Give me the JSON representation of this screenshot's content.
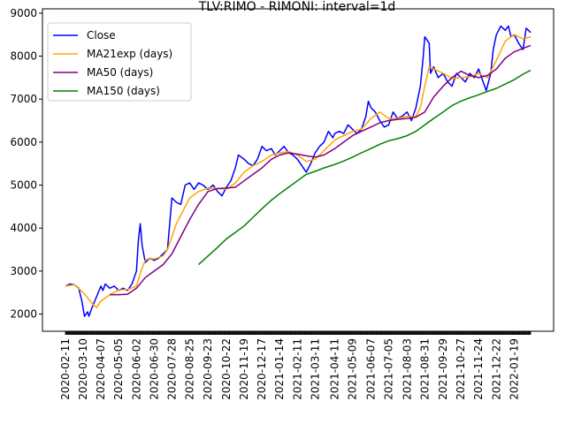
{
  "chart_data": {
    "type": "line",
    "title": "TLV:RIMO - RIMONI: interval=1d",
    "xlabel": "",
    "ylabel": "",
    "ylim": [
      1600,
      9100
    ],
    "y_ticks": [
      2000,
      3000,
      4000,
      5000,
      6000,
      7000,
      8000,
      9000
    ],
    "x_start": "2020-02-11",
    "x_end": "2022-02-14",
    "x_ticks": [
      "2020-02-11",
      "2020-03-10",
      "2020-04-07",
      "2020-05-05",
      "2020-06-02",
      "2020-06-30",
      "2020-07-28",
      "2020-08-25",
      "2020-09-23",
      "2020-10-22",
      "2020-11-19",
      "2020-12-17",
      "2021-01-14",
      "2021-02-11",
      "2021-03-11",
      "2021-04-11",
      "2021-05-09",
      "2021-06-07",
      "2021-07-05",
      "2021-08-03",
      "2021-08-31",
      "2021-09-29",
      "2021-10-27",
      "2021-11-24",
      "2021-12-22",
      "2022-01-19"
    ],
    "legend": "upper-left",
    "grid": false,
    "series": [
      {
        "name": "Close",
        "color": "#0000ff",
        "points": [
          [
            "2020-02-11",
            2650
          ],
          [
            "2020-02-18",
            2700
          ],
          [
            "2020-02-25",
            2680
          ],
          [
            "2020-03-03",
            2600
          ],
          [
            "2020-03-08",
            2300
          ],
          [
            "2020-03-12",
            1950
          ],
          [
            "2020-03-17",
            2050
          ],
          [
            "2020-03-19",
            1950
          ],
          [
            "2020-03-24",
            2150
          ],
          [
            "2020-03-31",
            2400
          ],
          [
            "2020-04-07",
            2650
          ],
          [
            "2020-04-10",
            2550
          ],
          [
            "2020-04-14",
            2700
          ],
          [
            "2020-04-21",
            2600
          ],
          [
            "2020-04-28",
            2650
          ],
          [
            "2020-05-05",
            2550
          ],
          [
            "2020-05-12",
            2600
          ],
          [
            "2020-05-19",
            2550
          ],
          [
            "2020-05-26",
            2700
          ],
          [
            "2020-06-02",
            3000
          ],
          [
            "2020-06-05",
            3700
          ],
          [
            "2020-06-08",
            4100
          ],
          [
            "2020-06-11",
            3600
          ],
          [
            "2020-06-16",
            3200
          ],
          [
            "2020-06-23",
            3300
          ],
          [
            "2020-06-30",
            3250
          ],
          [
            "2020-07-07",
            3300
          ],
          [
            "2020-07-14",
            3400
          ],
          [
            "2020-07-21",
            3500
          ],
          [
            "2020-07-28",
            4700
          ],
          [
            "2020-08-04",
            4600
          ],
          [
            "2020-08-11",
            4550
          ],
          [
            "2020-08-18",
            5000
          ],
          [
            "2020-08-25",
            5050
          ],
          [
            "2020-09-01",
            4900
          ],
          [
            "2020-09-08",
            5050
          ],
          [
            "2020-09-15",
            5000
          ],
          [
            "2020-09-23",
            4900
          ],
          [
            "2020-10-01",
            5000
          ],
          [
            "2020-10-08",
            4850
          ],
          [
            "2020-10-15",
            4750
          ],
          [
            "2020-10-22",
            4950
          ],
          [
            "2020-10-29",
            5100
          ],
          [
            "2020-11-05",
            5400
          ],
          [
            "2020-11-10",
            5700
          ],
          [
            "2020-11-19",
            5600
          ],
          [
            "2020-11-26",
            5500
          ],
          [
            "2020-12-03",
            5450
          ],
          [
            "2020-12-10",
            5600
          ],
          [
            "2020-12-17",
            5900
          ],
          [
            "2020-12-24",
            5800
          ],
          [
            "2021-01-01",
            5850
          ],
          [
            "2021-01-07",
            5700
          ],
          [
            "2021-01-14",
            5800
          ],
          [
            "2021-01-21",
            5900
          ],
          [
            "2021-01-28",
            5750
          ],
          [
            "2021-02-04",
            5700
          ],
          [
            "2021-02-11",
            5600
          ],
          [
            "2021-02-18",
            5450
          ],
          [
            "2021-02-25",
            5300
          ],
          [
            "2021-03-04",
            5500
          ],
          [
            "2021-03-11",
            5750
          ],
          [
            "2021-03-18",
            5900
          ],
          [
            "2021-03-25",
            6000
          ],
          [
            "2021-04-01",
            6250
          ],
          [
            "2021-04-08",
            6100
          ],
          [
            "2021-04-11",
            6200
          ],
          [
            "2021-04-18",
            6250
          ],
          [
            "2021-04-25",
            6200
          ],
          [
            "2021-05-02",
            6400
          ],
          [
            "2021-05-09",
            6300
          ],
          [
            "2021-05-16",
            6200
          ],
          [
            "2021-05-23",
            6300
          ],
          [
            "2021-05-30",
            6600
          ],
          [
            "2021-06-03",
            6950
          ],
          [
            "2021-06-07",
            6800
          ],
          [
            "2021-06-14",
            6700
          ],
          [
            "2021-06-21",
            6500
          ],
          [
            "2021-06-28",
            6350
          ],
          [
            "2021-07-05",
            6400
          ],
          [
            "2021-07-12",
            6700
          ],
          [
            "2021-07-19",
            6550
          ],
          [
            "2021-07-26",
            6600
          ],
          [
            "2021-08-03",
            6700
          ],
          [
            "2021-08-10",
            6500
          ],
          [
            "2021-08-17",
            6800
          ],
          [
            "2021-08-24",
            7300
          ],
          [
            "2021-08-28",
            7900
          ],
          [
            "2021-08-31",
            8450
          ],
          [
            "2021-09-07",
            8300
          ],
          [
            "2021-09-09",
            7600
          ],
          [
            "2021-09-14",
            7750
          ],
          [
            "2021-09-21",
            7500
          ],
          [
            "2021-09-29",
            7600
          ],
          [
            "2021-10-06",
            7400
          ],
          [
            "2021-10-13",
            7300
          ],
          [
            "2021-10-20",
            7600
          ],
          [
            "2021-10-27",
            7500
          ],
          [
            "2021-11-03",
            7400
          ],
          [
            "2021-11-10",
            7600
          ],
          [
            "2021-11-17",
            7500
          ],
          [
            "2021-11-24",
            7700
          ],
          [
            "2021-12-01",
            7400
          ],
          [
            "2021-12-06",
            7200
          ],
          [
            "2021-12-13",
            7600
          ],
          [
            "2021-12-17",
            8150
          ],
          [
            "2021-12-22",
            8500
          ],
          [
            "2021-12-29",
            8700
          ],
          [
            "2022-01-05",
            8600
          ],
          [
            "2022-01-10",
            8700
          ],
          [
            "2022-01-14",
            8450
          ],
          [
            "2022-01-19",
            8500
          ],
          [
            "2022-01-26",
            8300
          ],
          [
            "2022-02-02",
            8150
          ],
          [
            "2022-02-07",
            8650
          ],
          [
            "2022-02-14",
            8550
          ]
        ]
      },
      {
        "name": "MA21exp (days)",
        "color": "#ffa500",
        "points": [
          [
            "2020-02-11",
            2650
          ],
          [
            "2020-02-25",
            2680
          ],
          [
            "2020-03-10",
            2500
          ],
          [
            "2020-03-24",
            2250
          ],
          [
            "2020-03-31",
            2150
          ],
          [
            "2020-04-07",
            2300
          ],
          [
            "2020-04-21",
            2450
          ],
          [
            "2020-05-05",
            2560
          ],
          [
            "2020-05-19",
            2570
          ],
          [
            "2020-06-02",
            2650
          ],
          [
            "2020-06-09",
            3000
          ],
          [
            "2020-06-16",
            3250
          ],
          [
            "2020-06-23",
            3300
          ],
          [
            "2020-06-30",
            3280
          ],
          [
            "2020-07-14",
            3350
          ],
          [
            "2020-07-21",
            3500
          ],
          [
            "2020-07-28",
            3800
          ],
          [
            "2020-08-04",
            4100
          ],
          [
            "2020-08-11",
            4300
          ],
          [
            "2020-08-18",
            4500
          ],
          [
            "2020-08-25",
            4700
          ],
          [
            "2020-09-08",
            4850
          ],
          [
            "2020-09-23",
            4930
          ],
          [
            "2020-10-08",
            4920
          ],
          [
            "2020-10-22",
            4900
          ],
          [
            "2020-11-05",
            5050
          ],
          [
            "2020-11-19",
            5300
          ],
          [
            "2020-12-03",
            5450
          ],
          [
            "2020-12-17",
            5550
          ],
          [
            "2021-01-01",
            5700
          ],
          [
            "2021-01-14",
            5750
          ],
          [
            "2021-01-28",
            5780
          ],
          [
            "2021-02-11",
            5700
          ],
          [
            "2021-02-25",
            5550
          ],
          [
            "2021-03-11",
            5600
          ],
          [
            "2021-03-25",
            5800
          ],
          [
            "2021-04-11",
            6050
          ],
          [
            "2021-04-25",
            6150
          ],
          [
            "2021-05-09",
            6250
          ],
          [
            "2021-05-23",
            6300
          ],
          [
            "2021-06-07",
            6550
          ],
          [
            "2021-06-21",
            6700
          ],
          [
            "2021-07-05",
            6550
          ],
          [
            "2021-07-19",
            6550
          ],
          [
            "2021-08-03",
            6600
          ],
          [
            "2021-08-17",
            6600
          ],
          [
            "2021-08-24",
            6800
          ],
          [
            "2021-08-31",
            7300
          ],
          [
            "2021-09-07",
            7750
          ],
          [
            "2021-09-14",
            7700
          ],
          [
            "2021-09-29",
            7600
          ],
          [
            "2021-10-13",
            7480
          ],
          [
            "2021-10-27",
            7500
          ],
          [
            "2021-11-10",
            7520
          ],
          [
            "2021-11-24",
            7600
          ],
          [
            "2021-12-08",
            7500
          ],
          [
            "2021-12-22",
            7900
          ],
          [
            "2022-01-05",
            8350
          ],
          [
            "2022-01-19",
            8500
          ],
          [
            "2022-02-02",
            8400
          ],
          [
            "2022-02-14",
            8450
          ]
        ]
      },
      {
        "name": "MA50 (days)",
        "color": "#800080",
        "points": [
          [
            "2020-04-21",
            2450
          ],
          [
            "2020-05-05",
            2450
          ],
          [
            "2020-05-19",
            2460
          ],
          [
            "2020-06-02",
            2600
          ],
          [
            "2020-06-16",
            2850
          ],
          [
            "2020-06-30",
            3000
          ],
          [
            "2020-07-14",
            3150
          ],
          [
            "2020-07-28",
            3400
          ],
          [
            "2020-08-11",
            3800
          ],
          [
            "2020-08-25",
            4200
          ],
          [
            "2020-09-08",
            4550
          ],
          [
            "2020-09-23",
            4850
          ],
          [
            "2020-10-08",
            4920
          ],
          [
            "2020-10-22",
            4930
          ],
          [
            "2020-11-05",
            4950
          ],
          [
            "2020-11-19",
            5100
          ],
          [
            "2020-12-03",
            5250
          ],
          [
            "2020-12-17",
            5400
          ],
          [
            "2021-01-01",
            5600
          ],
          [
            "2021-01-14",
            5700
          ],
          [
            "2021-01-28",
            5750
          ],
          [
            "2021-02-11",
            5720
          ],
          [
            "2021-02-25",
            5680
          ],
          [
            "2021-03-11",
            5650
          ],
          [
            "2021-03-25",
            5700
          ],
          [
            "2021-04-11",
            5850
          ],
          [
            "2021-04-25",
            6000
          ],
          [
            "2021-05-09",
            6150
          ],
          [
            "2021-05-23",
            6250
          ],
          [
            "2021-06-07",
            6350
          ],
          [
            "2021-06-21",
            6450
          ],
          [
            "2021-07-05",
            6500
          ],
          [
            "2021-07-19",
            6530
          ],
          [
            "2021-08-03",
            6550
          ],
          [
            "2021-08-17",
            6580
          ],
          [
            "2021-08-31",
            6700
          ],
          [
            "2021-09-14",
            7050
          ],
          [
            "2021-09-29",
            7300
          ],
          [
            "2021-10-13",
            7500
          ],
          [
            "2021-10-27",
            7650
          ],
          [
            "2021-11-10",
            7550
          ],
          [
            "2021-11-24",
            7500
          ],
          [
            "2021-12-08",
            7550
          ],
          [
            "2021-12-22",
            7700
          ],
          [
            "2022-01-05",
            7950
          ],
          [
            "2022-01-19",
            8100
          ],
          [
            "2022-02-14",
            8250
          ]
        ]
      },
      {
        "name": "MA150 (days)",
        "color": "#008000",
        "points": [
          [
            "2020-09-08",
            3150
          ],
          [
            "2020-09-23",
            3350
          ],
          [
            "2020-10-08",
            3550
          ],
          [
            "2020-10-22",
            3750
          ],
          [
            "2020-11-05",
            3900
          ],
          [
            "2020-11-19",
            4050
          ],
          [
            "2020-12-03",
            4250
          ],
          [
            "2020-12-17",
            4450
          ],
          [
            "2021-01-01",
            4650
          ],
          [
            "2021-01-14",
            4800
          ],
          [
            "2021-01-28",
            4950
          ],
          [
            "2021-02-11",
            5100
          ],
          [
            "2021-02-25",
            5250
          ],
          [
            "2021-03-11",
            5320
          ],
          [
            "2021-03-25",
            5400
          ],
          [
            "2021-04-11",
            5480
          ],
          [
            "2021-04-25",
            5560
          ],
          [
            "2021-05-09",
            5650
          ],
          [
            "2021-05-23",
            5750
          ],
          [
            "2021-06-07",
            5850
          ],
          [
            "2021-06-21",
            5950
          ],
          [
            "2021-07-05",
            6030
          ],
          [
            "2021-07-19",
            6080
          ],
          [
            "2021-08-03",
            6150
          ],
          [
            "2021-08-17",
            6250
          ],
          [
            "2021-08-31",
            6400
          ],
          [
            "2021-09-14",
            6550
          ],
          [
            "2021-09-29",
            6700
          ],
          [
            "2021-10-13",
            6850
          ],
          [
            "2021-10-27",
            6950
          ],
          [
            "2021-11-10",
            7030
          ],
          [
            "2021-11-24",
            7100
          ],
          [
            "2021-12-08",
            7180
          ],
          [
            "2021-12-22",
            7250
          ],
          [
            "2022-01-05",
            7350
          ],
          [
            "2022-01-19",
            7450
          ],
          [
            "2022-02-02",
            7580
          ],
          [
            "2022-02-14",
            7670
          ]
        ]
      }
    ]
  }
}
